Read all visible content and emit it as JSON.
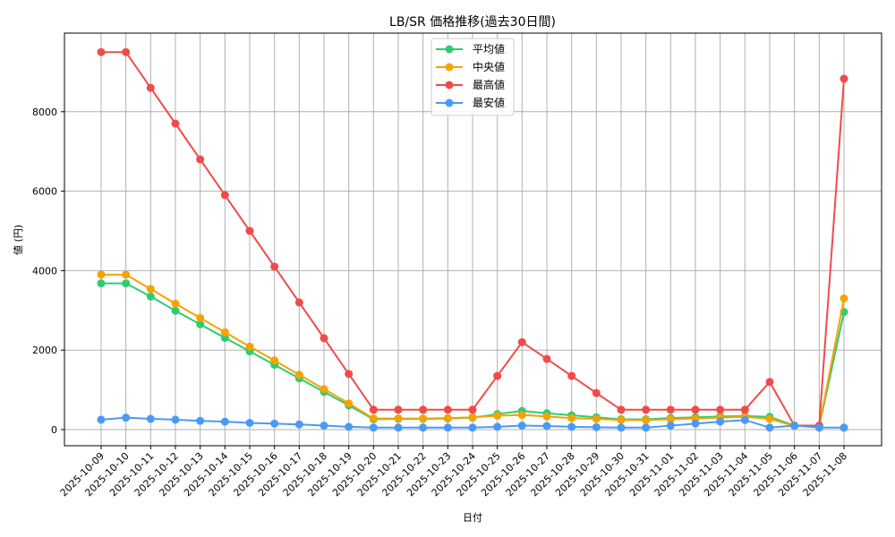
{
  "chart_data": {
    "type": "line",
    "title": "LB/SR 価格推移(過去30日間)",
    "xlabel": "日付",
    "ylabel": "値 (円)",
    "ylim": [
      -420,
      9950
    ],
    "yticks": [
      0,
      2000,
      4000,
      6000,
      8000
    ],
    "grid": true,
    "legend_position": "upper center",
    "x": [
      "2025-10-09",
      "2025-10-10",
      "2025-10-11",
      "2025-10-12",
      "2025-10-13",
      "2025-10-14",
      "2025-10-15",
      "2025-10-16",
      "2025-10-17",
      "2025-10-18",
      "2025-10-19",
      "2025-10-20",
      "2025-10-21",
      "2025-10-22",
      "2025-10-23",
      "2025-10-24",
      "2025-10-25",
      "2025-10-26",
      "2025-10-27",
      "2025-10-28",
      "2025-10-29",
      "2025-10-30",
      "2025-10-31",
      "2025-11-01",
      "2025-11-02",
      "2025-11-03",
      "2025-11-04",
      "2025-11-05",
      "2025-11-06",
      "2025-11-07",
      "2025-11-08"
    ],
    "series": [
      {
        "name": "平均値",
        "color": "#2ecc71",
        "values": [
          3680,
          3680,
          3350,
          2990,
          2650,
          2310,
          1970,
          1630,
          1290,
          950,
          610,
          260,
          270,
          270,
          280,
          300,
          390,
          470,
          410,
          360,
          310,
          260,
          260,
          290,
          310,
          330,
          340,
          320,
          100,
          80,
          2960
        ]
      },
      {
        "name": "中央値",
        "color": "#f5a300",
        "values": [
          3900,
          3900,
          3540,
          3170,
          2810,
          2450,
          2090,
          1740,
          1380,
          1020,
          660,
          280,
          280,
          280,
          290,
          310,
          350,
          370,
          330,
          290,
          270,
          240,
          240,
          260,
          280,
          300,
          320,
          270,
          90,
          80,
          3300
        ]
      },
      {
        "name": "最高値",
        "color": "#f24a4a",
        "values": [
          9500,
          9500,
          8600,
          7700,
          6800,
          5900,
          5000,
          4100,
          3200,
          2300,
          1400,
          500,
          500,
          500,
          500,
          500,
          1350,
          2200,
          1780,
          1350,
          920,
          500,
          500,
          500,
          500,
          500,
          500,
          1200,
          100,
          100,
          8830
        ]
      },
      {
        "name": "最安値",
        "color": "#4a9af5",
        "values": [
          250,
          300,
          270,
          250,
          220,
          200,
          170,
          150,
          130,
          100,
          70,
          50,
          50,
          50,
          50,
          50,
          70,
          100,
          90,
          70,
          60,
          50,
          50,
          100,
          150,
          200,
          240,
          50,
          100,
          50,
          50
        ]
      }
    ]
  }
}
